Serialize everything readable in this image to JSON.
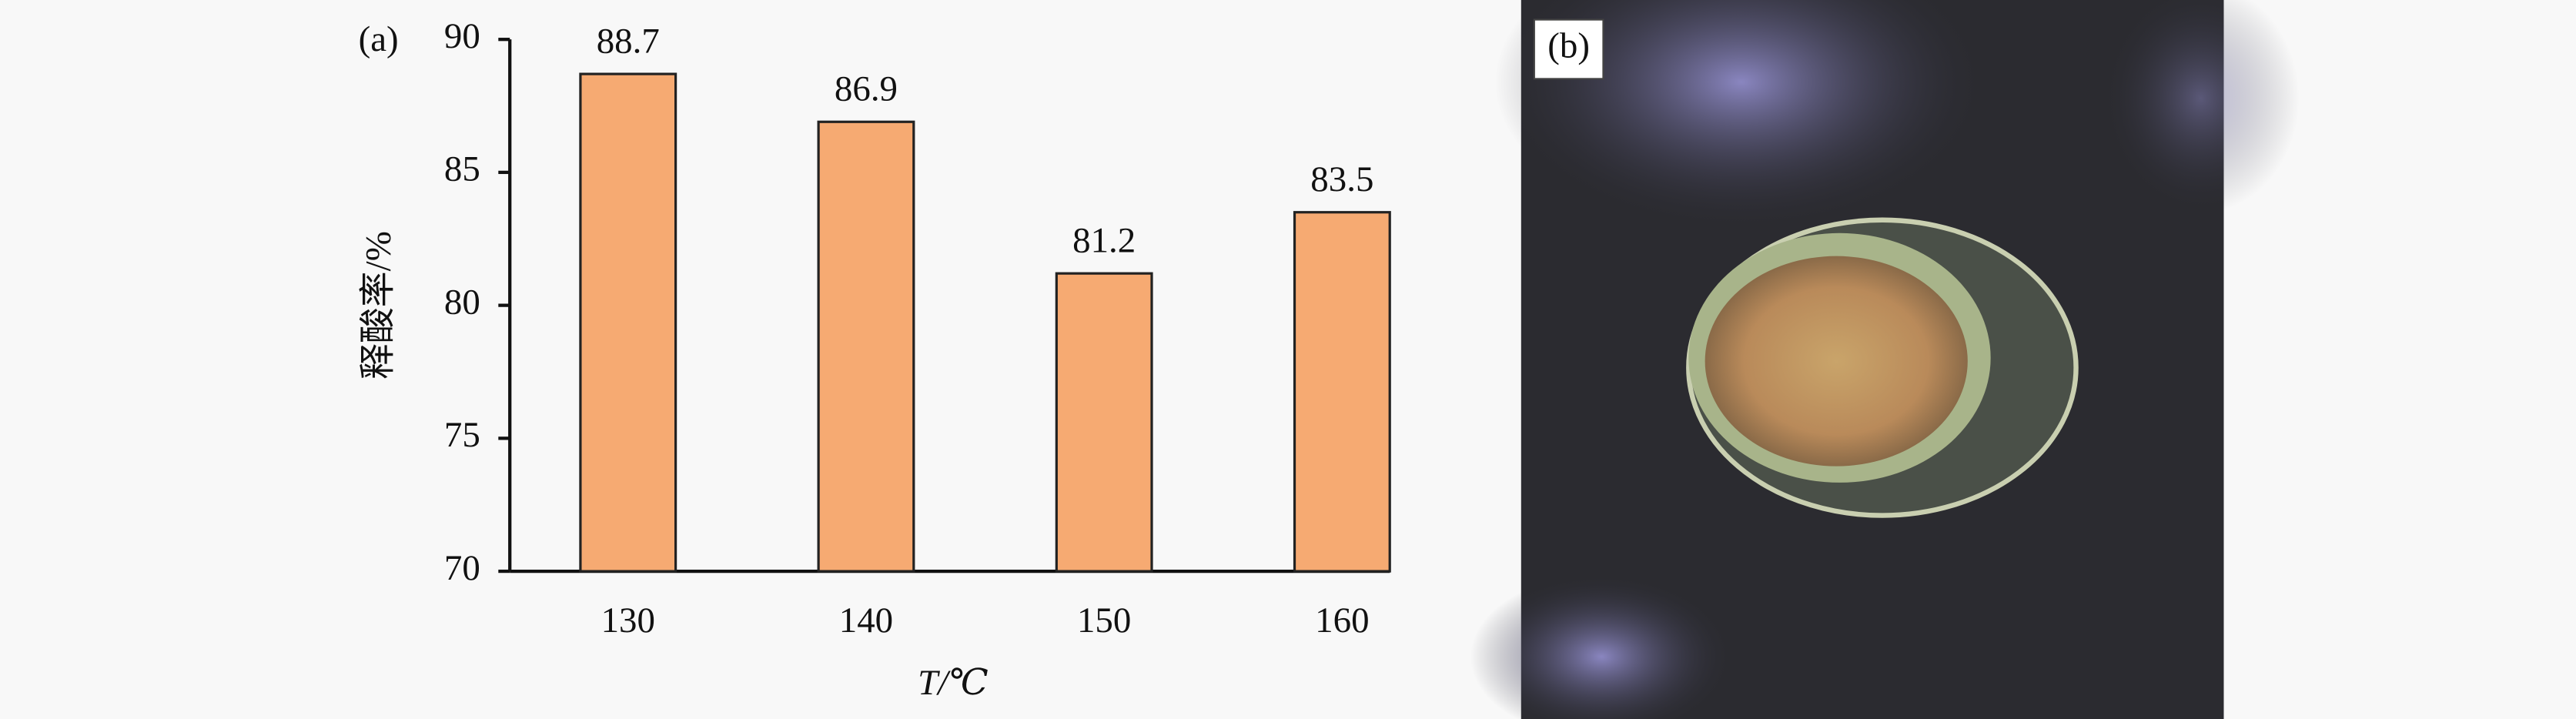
{
  "chart_data": {
    "type": "bar",
    "panel_label": "(a)",
    "x_label": "T/℃",
    "y_label": "释酸率/%",
    "categories": [
      "130",
      "140",
      "150",
      "160"
    ],
    "values": [
      88.7,
      86.9,
      81.2,
      83.5
    ],
    "color": "#f6aa72",
    "ylim": [
      70,
      90
    ],
    "yticks": [
      70,
      75,
      80,
      85,
      90
    ]
  },
  "photo": {
    "label": "(b)"
  }
}
